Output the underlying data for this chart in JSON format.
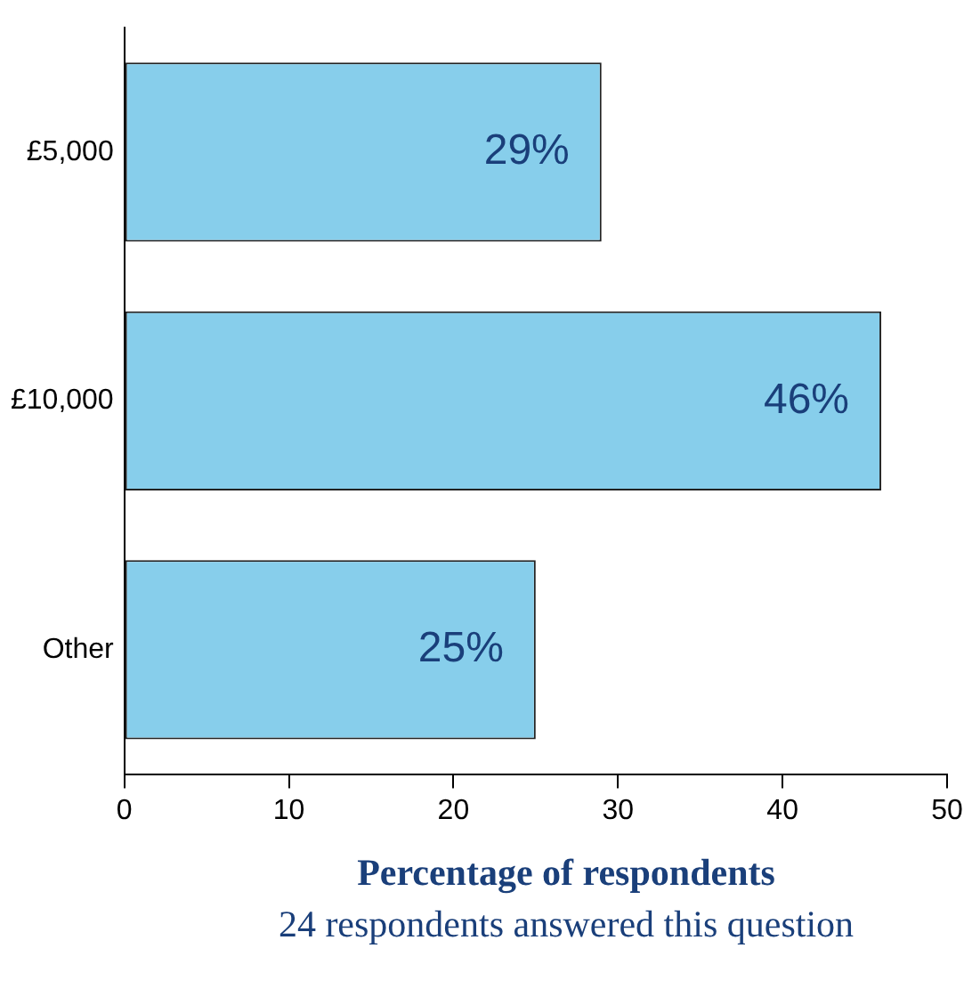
{
  "chart_data": {
    "type": "bar",
    "orientation": "horizontal",
    "categories": [
      "£5,000",
      "£10,000",
      "Other"
    ],
    "values": [
      29,
      46,
      25
    ],
    "value_labels": [
      "29%",
      "46%",
      "25%"
    ],
    "color": "#87ceeb",
    "xlim": [
      0,
      50
    ],
    "xticks": [
      0,
      10,
      20,
      30,
      40,
      50
    ],
    "grid": false,
    "legend": false,
    "xlabel": "Percentage of respondents",
    "annotations": [
      "24 respondents answered this question"
    ]
  }
}
